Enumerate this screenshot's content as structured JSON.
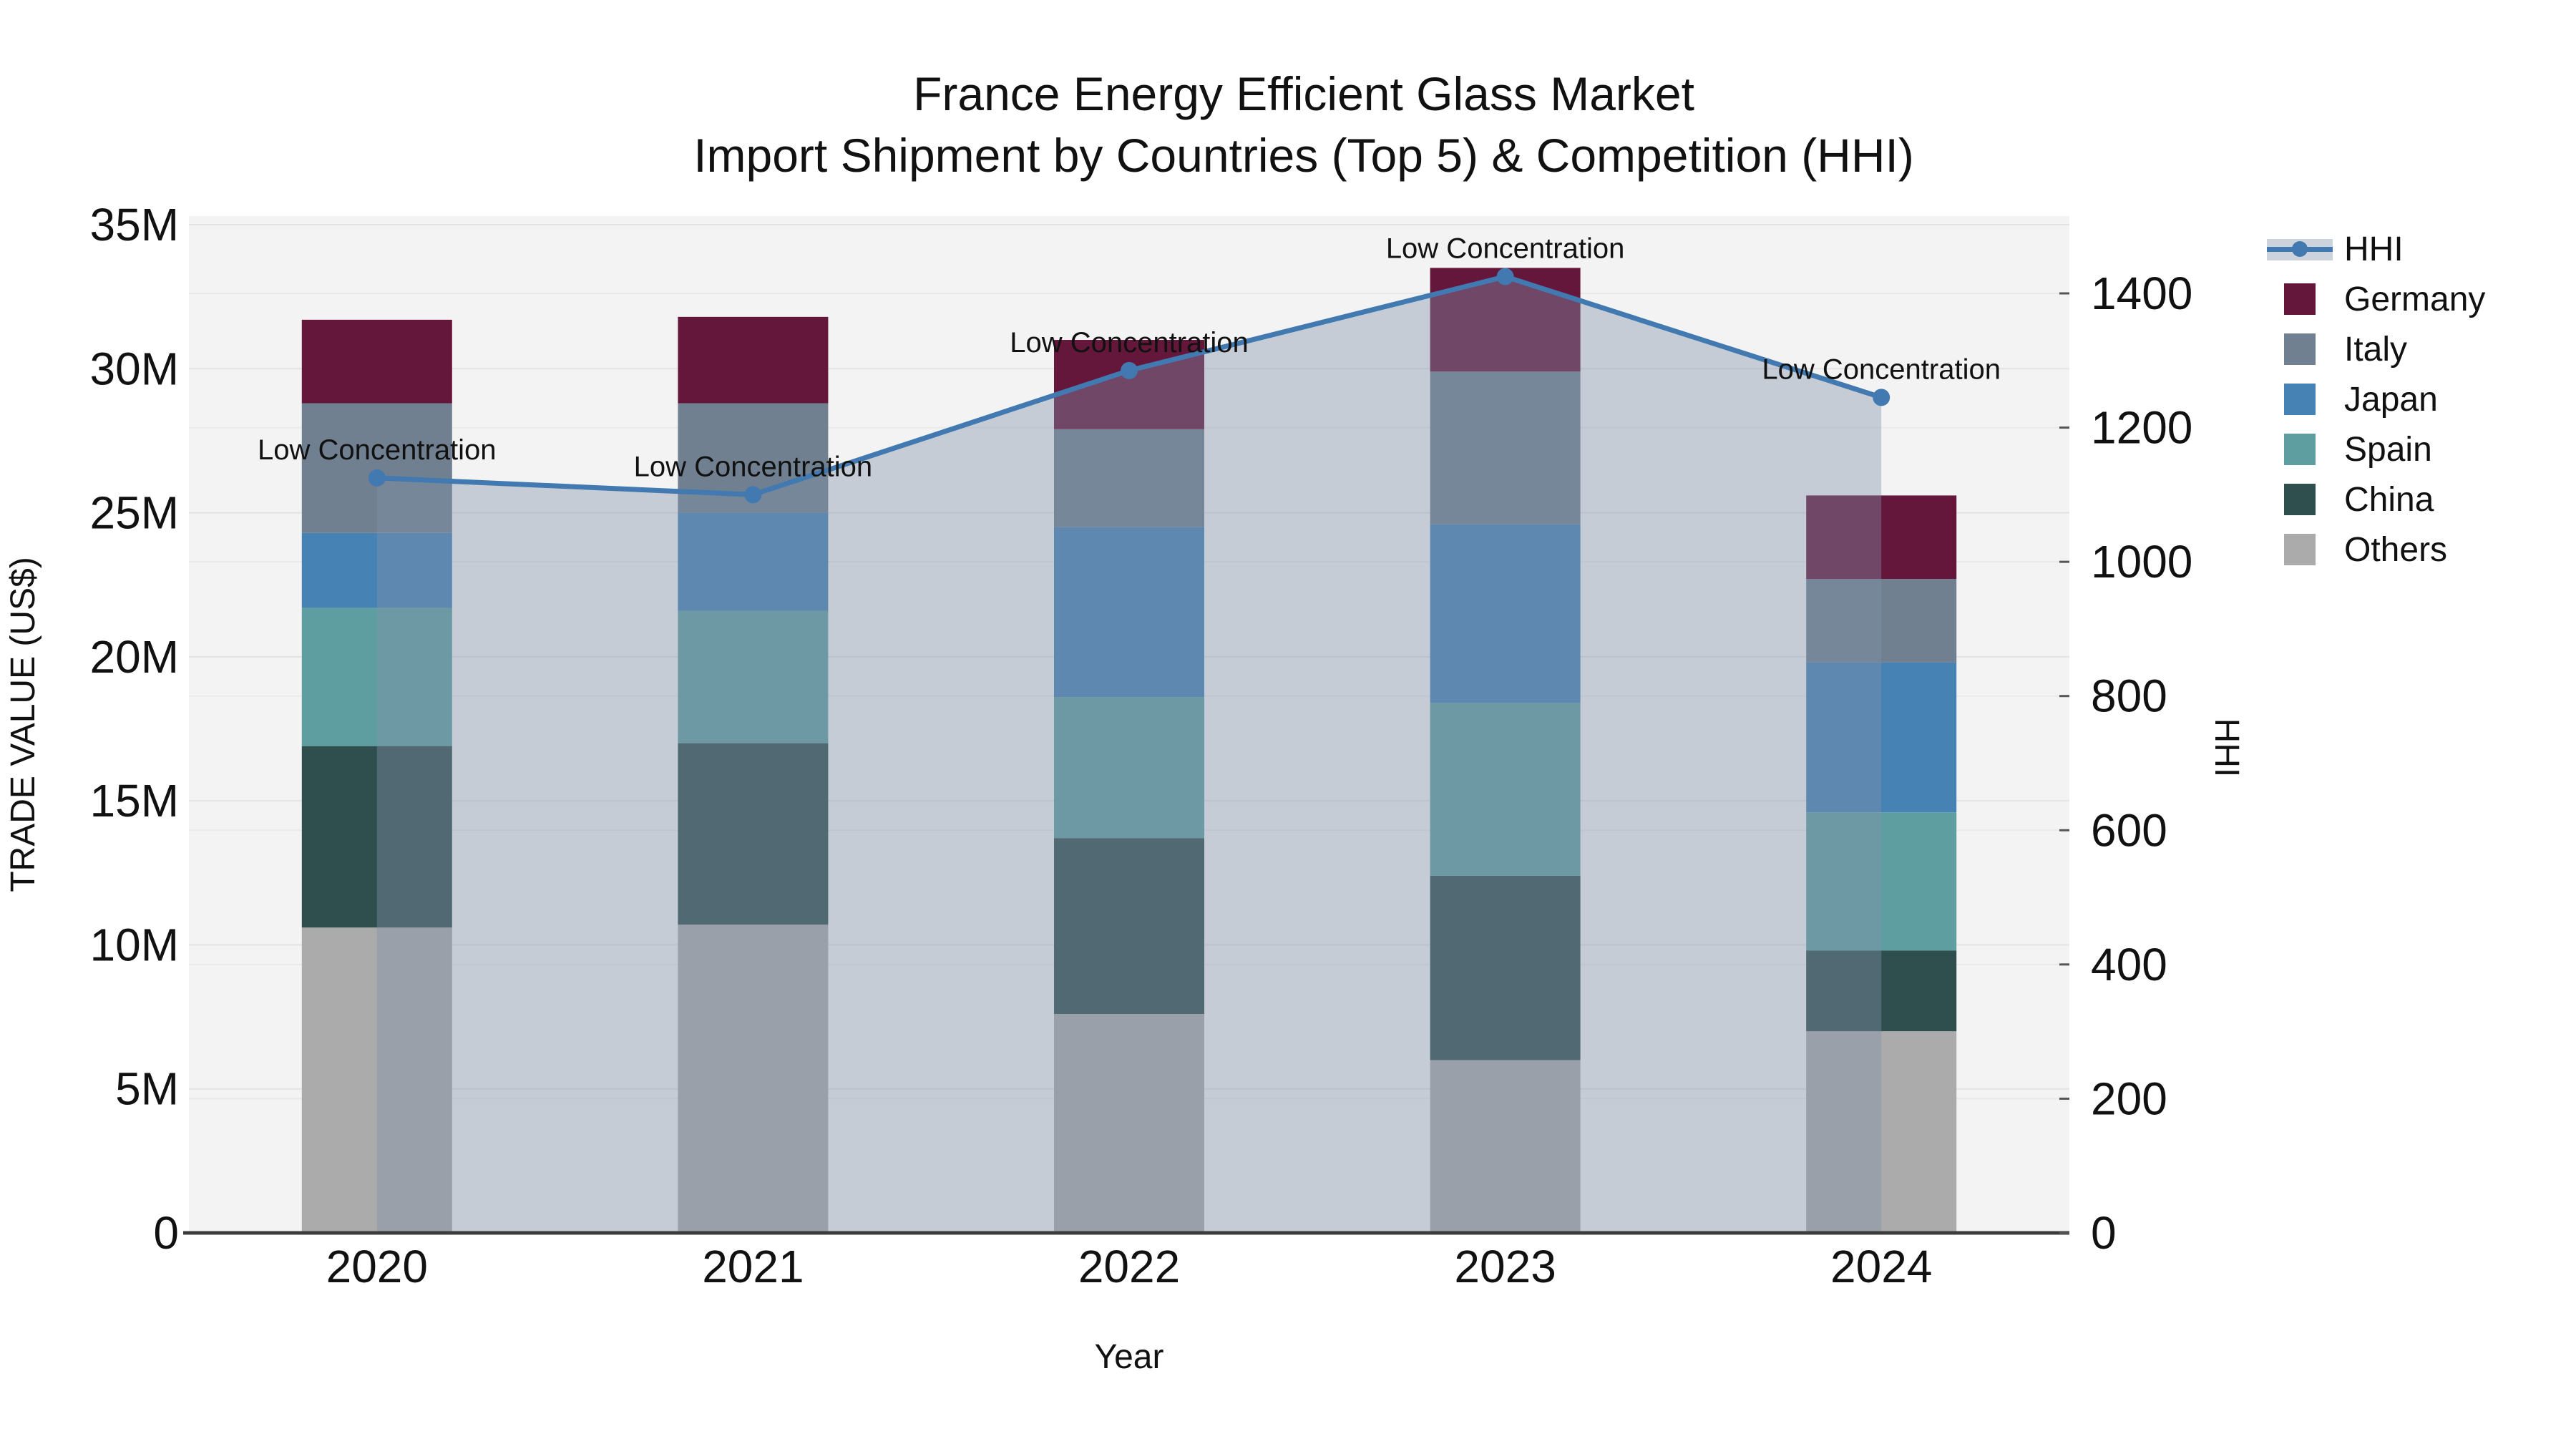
{
  "title": {
    "line1": "France Energy Efficient Glass Market",
    "line2": "Import Shipment by Countries (Top 5) & Competition (HHI)"
  },
  "chart_data": {
    "type": "combo: stacked bar (trade value) + line with area fill (HHI)",
    "categories": [
      "2020",
      "2021",
      "2022",
      "2023",
      "2024"
    ],
    "bar_value_unit": "million US$",
    "bar_series": [
      {
        "name": "Germany",
        "color": "#64173A",
        "values": [
          2.9,
          3.0,
          3.1,
          3.6,
          2.9
        ]
      },
      {
        "name": "Italy",
        "color": "#708090",
        "values": [
          4.5,
          3.8,
          3.4,
          5.3,
          2.9
        ]
      },
      {
        "name": "Japan",
        "color": "#4682B4",
        "values": [
          2.6,
          3.4,
          5.9,
          6.2,
          5.2
        ]
      },
      {
        "name": "Spain",
        "color": "#5F9EA0",
        "values": [
          4.8,
          4.6,
          4.9,
          6.0,
          4.8
        ]
      },
      {
        "name": "China",
        "color": "#2F4F4F",
        "values": [
          6.3,
          6.3,
          6.1,
          6.4,
          2.8
        ]
      },
      {
        "name": "Others",
        "color": "#ABABAB",
        "values": [
          10.6,
          10.7,
          7.6,
          6.0,
          7.0
        ]
      }
    ],
    "stack_order_bottom_to_top": [
      "Others",
      "China",
      "Spain",
      "Japan",
      "Italy",
      "Germany"
    ],
    "bar_totals_musd": [
      31.7,
      31.8,
      31.0,
      33.5,
      25.6
    ],
    "line_series": {
      "name": "HHI",
      "values": [
        1125,
        1100,
        1285,
        1425,
        1245
      ],
      "color": "#4179B0",
      "area_fill": "rgba(130,145,170,0.40)"
    },
    "annotations": [
      {
        "category": "2020",
        "text": "Low Concentration"
      },
      {
        "category": "2021",
        "text": "Low Concentration"
      },
      {
        "category": "2022",
        "text": "Low Concentration"
      },
      {
        "category": "2023",
        "text": "Low Concentration"
      },
      {
        "category": "2024",
        "text": "Low Concentration"
      }
    ],
    "left_axis": {
      "title": "TRADE VALUE (US$)",
      "range_musd": [
        0,
        35.4
      ],
      "ticks": [
        {
          "value": 0,
          "label": "0"
        },
        {
          "value": 5,
          "label": "5M"
        },
        {
          "value": 10,
          "label": "10M"
        },
        {
          "value": 15,
          "label": "15M"
        },
        {
          "value": 20,
          "label": "20M"
        },
        {
          "value": 25,
          "label": "25M"
        },
        {
          "value": 30,
          "label": "30M"
        },
        {
          "value": 35,
          "label": "35M"
        }
      ],
      "grid": true
    },
    "right_axis": {
      "title": "HHI",
      "range": [
        0,
        1515
      ],
      "ticks": [
        {
          "value": 0,
          "label": "0"
        },
        {
          "value": 200,
          "label": "200"
        },
        {
          "value": 400,
          "label": "400"
        },
        {
          "value": 600,
          "label": "600"
        },
        {
          "value": 800,
          "label": "800"
        },
        {
          "value": 1000,
          "label": "1000"
        },
        {
          "value": 1200,
          "label": "1200"
        },
        {
          "value": 1400,
          "label": "1400"
        }
      ],
      "grid": true
    },
    "x_axis": {
      "title": "Year"
    },
    "legend_position": "right",
    "plot_background": "#F3F3F3",
    "grid_color": "#E3E3E5",
    "axis_line_color": "#3C3C3C"
  },
  "legend": {
    "items": [
      {
        "label": "HHI",
        "type": "line"
      },
      {
        "label": "Germany",
        "type": "swatch"
      },
      {
        "label": "Italy",
        "type": "swatch"
      },
      {
        "label": "Japan",
        "type": "swatch"
      },
      {
        "label": "Spain",
        "type": "swatch"
      },
      {
        "label": "China",
        "type": "swatch"
      },
      {
        "label": "Others",
        "type": "swatch"
      }
    ]
  }
}
